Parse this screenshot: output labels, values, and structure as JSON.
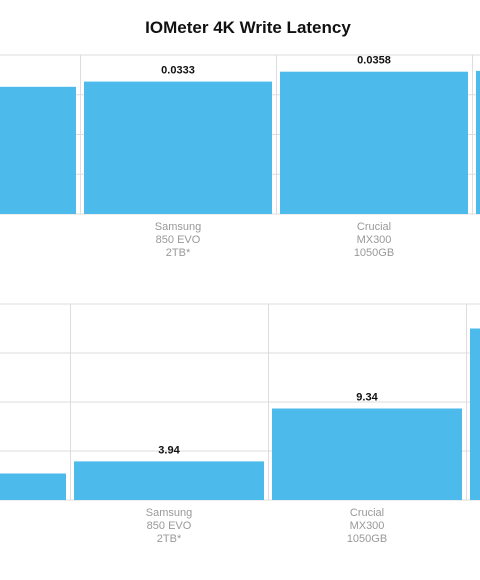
{
  "chart_data": {
    "title": "IOMeter 4K Write Latency",
    "type": "bar",
    "colors": {
      "bar": "#4dbaec",
      "grid": "#dddddd",
      "label": "#999999",
      "value": "#111111"
    },
    "panels": [
      {
        "categories": [
          [
            "",
            "",
            ""
          ],
          [
            "Samsung",
            "850 EVO",
            "2TB*"
          ],
          [
            "Crucial",
            "MX300",
            "1050GB"
          ],
          [
            "",
            "",
            ""
          ]
        ],
        "values": [
          0.032,
          0.0333,
          0.0358,
          0.036
        ],
        "value_labels": [
          "",
          "0.0333",
          "0.0358",
          ""
        ],
        "ylim": [
          0.0,
          0.04
        ]
      },
      {
        "categories": [
          [
            "",
            "",
            ""
          ],
          [
            "Samsung",
            "850 EVO",
            "2TB*"
          ],
          [
            "Crucial",
            "MX300",
            "1050GB"
          ],
          [
            "",
            "",
            ""
          ]
        ],
        "values": [
          2.7,
          3.94,
          9.34,
          17.5
        ],
        "value_labels": [
          "",
          "3.94",
          "9.34",
          ""
        ],
        "ylim": [
          0.0,
          20.0
        ]
      }
    ]
  }
}
